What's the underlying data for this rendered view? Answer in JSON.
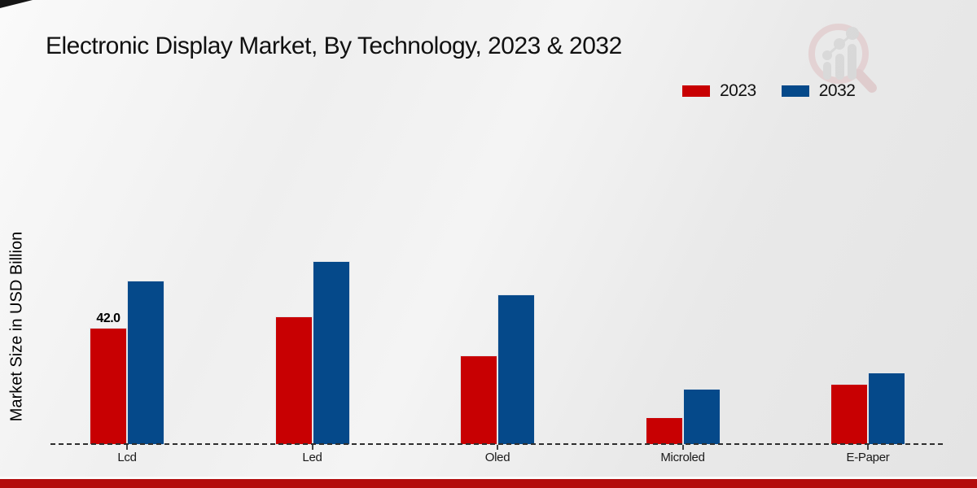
{
  "title": "Electronic Display Market, By Technology, 2023 & 2032",
  "ylabel": "Market Size in USD Billion",
  "legend": {
    "items": [
      {
        "label": "2023",
        "color": "#c80002"
      },
      {
        "label": "2032",
        "color": "#05498a"
      }
    ]
  },
  "footer": {
    "bar_color": "#b30d0d"
  },
  "watermark_icon": "magnifier-growth-chart-logo",
  "chart_data": {
    "type": "bar",
    "title": "Electronic Display Market, By Technology, 2023 & 2032",
    "categories": [
      "Lcd",
      "Led",
      "Oled",
      "Microled",
      "E-Paper"
    ],
    "series": [
      {
        "name": "2023",
        "color": "#c80002",
        "values": [
          42.0,
          46.0,
          32.0,
          10.0,
          22.0
        ]
      },
      {
        "name": "2032",
        "color": "#05498a",
        "values": [
          59.0,
          66.0,
          54.0,
          20.0,
          26.0
        ]
      }
    ],
    "xlabel": "",
    "ylabel": "Market Size in USD Billion",
    "ylim": [
      0,
      70
    ],
    "grid": false,
    "y_axis_ticks_visible": false,
    "baseline_style": "dashed",
    "legend_position": "top-right",
    "annotations": [
      {
        "category": "Lcd",
        "series": "2023",
        "text": "42.0"
      }
    ]
  }
}
